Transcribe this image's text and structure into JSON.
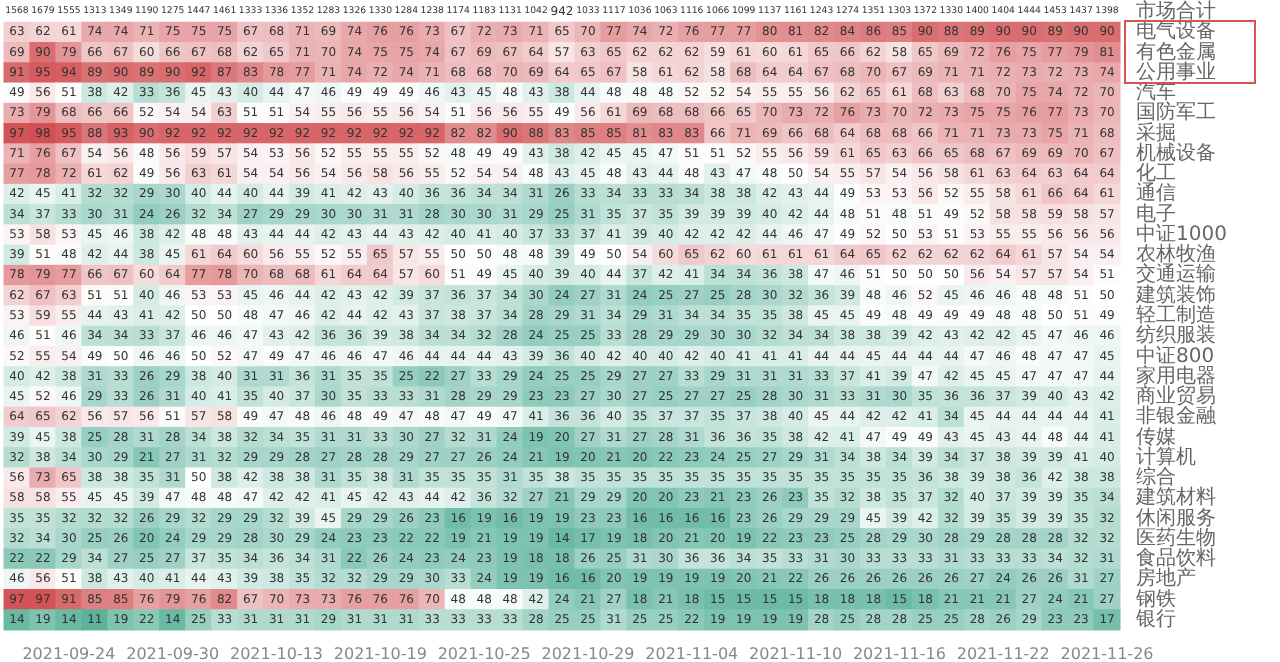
{
  "chart_data": {
    "type": "heatmap",
    "categories": [
      null,
      null,
      "2021-09-24",
      null,
      null,
      null,
      "2021-09-30",
      null,
      null,
      null,
      "2021-10-13",
      null,
      null,
      null,
      "2021-10-19",
      null,
      null,
      null,
      "2021-10-25",
      null,
      null,
      null,
      "2021-10-29",
      null,
      null,
      null,
      "2021-11-04",
      null,
      null,
      null,
      "2021-11-10",
      null,
      null,
      null,
      "2021-11-16",
      null,
      null,
      null,
      "2021-11-22",
      null,
      null,
      null,
      "2021-11-26"
    ],
    "y_categories": [
      "市场合计",
      "电气设备",
      "有色金属",
      "公用事业",
      "汽车",
      "国防军工",
      "采掘",
      "机械设备",
      "化工",
      "通信",
      "电子",
      "中证1000",
      "农林牧渔",
      "交通运输",
      "建筑装饰",
      "轻工制造",
      "纺织服装",
      "中证800",
      "家用电器",
      "商业贸易",
      "非银金融",
      "传媒",
      "计算机",
      "综合",
      "建筑材料",
      "休闲服务",
      "医药生物",
      "食品饮料",
      "房地产",
      "钢铁",
      "银行"
    ],
    "cells": [
      [
        1568,
        1679,
        1555,
        1313,
        1349,
        1190,
        1275,
        1447,
        1461,
        1333,
        1336,
        1352,
        1283,
        1326,
        1330,
        1284,
        1238,
        1174,
        1183,
        1131,
        1042,
        942,
        1033,
        1117,
        1036,
        1063,
        1116,
        1066,
        1099,
        1137,
        1161,
        1243,
        1274,
        1351,
        1303,
        1372,
        1330,
        1400,
        1404,
        1444,
        1453,
        1437,
        1398
      ],
      [
        63,
        62,
        61,
        74,
        74,
        71,
        75,
        75,
        75,
        67,
        68,
        71,
        69,
        74,
        76,
        76,
        73,
        67,
        72,
        73,
        71,
        65,
        70,
        77,
        74,
        72,
        76,
        77,
        77,
        80,
        81,
        82,
        84,
        86,
        85,
        90,
        88,
        89,
        90,
        90,
        89,
        90,
        90
      ],
      [
        69,
        90,
        79,
        66,
        67,
        60,
        66,
        67,
        68,
        62,
        65,
        71,
        70,
        74,
        75,
        75,
        74,
        67,
        69,
        67,
        64,
        57,
        63,
        65,
        62,
        62,
        62,
        59,
        61,
        60,
        61,
        65,
        66,
        62,
        58,
        65,
        69,
        72,
        76,
        75,
        77,
        79,
        81
      ],
      [
        91,
        95,
        94,
        89,
        90,
        89,
        90,
        92,
        87,
        83,
        78,
        77,
        71,
        74,
        72,
        74,
        71,
        68,
        68,
        70,
        69,
        64,
        65,
        67,
        58,
        61,
        62,
        58,
        68,
        64,
        64,
        67,
        68,
        70,
        67,
        69,
        71,
        71,
        72,
        73,
        72,
        73,
        74
      ],
      [
        49,
        56,
        51,
        38,
        42,
        33,
        36,
        45,
        43,
        40,
        44,
        47,
        46,
        49,
        49,
        49,
        46,
        43,
        45,
        48,
        43,
        38,
        44,
        48,
        48,
        48,
        52,
        52,
        54,
        55,
        55,
        56,
        62,
        65,
        61,
        68,
        63,
        68,
        70,
        75,
        74,
        72,
        70
      ],
      [
        73,
        79,
        68,
        66,
        66,
        52,
        54,
        54,
        63,
        51,
        51,
        54,
        55,
        56,
        55,
        56,
        54,
        51,
        56,
        56,
        55,
        49,
        56,
        61,
        69,
        68,
        68,
        66,
        65,
        70,
        73,
        72,
        76,
        73,
        70,
        72,
        73,
        75,
        75,
        76,
        77,
        73,
        70
      ],
      [
        97,
        98,
        95,
        88,
        93,
        90,
        92,
        92,
        92,
        92,
        92,
        92,
        92,
        92,
        92,
        92,
        92,
        82,
        82,
        90,
        88,
        83,
        85,
        85,
        81,
        83,
        83,
        66,
        71,
        69,
        66,
        68,
        64,
        68,
        68,
        66,
        71,
        71,
        73,
        73,
        75,
        71,
        68
      ],
      [
        71,
        76,
        67,
        54,
        56,
        48,
        56,
        59,
        57,
        54,
        53,
        56,
        52,
        55,
        55,
        55,
        52,
        48,
        49,
        49,
        43,
        38,
        42,
        45,
        45,
        47,
        51,
        51,
        52,
        55,
        56,
        59,
        61,
        65,
        63,
        66,
        65,
        68,
        67,
        69,
        69,
        70,
        67
      ],
      [
        77,
        78,
        72,
        61,
        62,
        49,
        56,
        63,
        61,
        54,
        54,
        56,
        54,
        56,
        58,
        56,
        55,
        52,
        54,
        54,
        48,
        43,
        45,
        48,
        43,
        44,
        48,
        43,
        47,
        48,
        50,
        54,
        55,
        57,
        54,
        56,
        58,
        61,
        63,
        64,
        63,
        64,
        64
      ],
      [
        42,
        45,
        41,
        32,
        32,
        29,
        30,
        40,
        44,
        40,
        44,
        39,
        41,
        42,
        43,
        40,
        36,
        36,
        34,
        34,
        31,
        26,
        33,
        34,
        33,
        33,
        34,
        38,
        38,
        42,
        43,
        44,
        49,
        53,
        53,
        56,
        52,
        55,
        58,
        61,
        66,
        64,
        61
      ],
      [
        34,
        37,
        33,
        30,
        31,
        24,
        26,
        32,
        34,
        27,
        29,
        29,
        30,
        30,
        31,
        31,
        28,
        30,
        30,
        31,
        29,
        25,
        31,
        35,
        37,
        35,
        39,
        39,
        39,
        40,
        42,
        44,
        48,
        51,
        48,
        51,
        49,
        52,
        58,
        58,
        59,
        58,
        57
      ],
      [
        53,
        58,
        53,
        45,
        46,
        38,
        42,
        48,
        48,
        43,
        44,
        44,
        42,
        43,
        44,
        43,
        42,
        40,
        41,
        40,
        37,
        33,
        37,
        41,
        39,
        40,
        42,
        42,
        42,
        44,
        46,
        47,
        49,
        52,
        50,
        53,
        51,
        53,
        55,
        55,
        56,
        56,
        56
      ],
      [
        39,
        51,
        48,
        42,
        44,
        38,
        45,
        61,
        64,
        60,
        56,
        55,
        52,
        55,
        65,
        57,
        55,
        50,
        50,
        48,
        48,
        39,
        49,
        50,
        54,
        60,
        65,
        62,
        60,
        61,
        61,
        61,
        64,
        65,
        62,
        62,
        62,
        62,
        64,
        61,
        57,
        54,
        54
      ],
      [
        78,
        79,
        77,
        66,
        67,
        60,
        64,
        77,
        78,
        70,
        68,
        68,
        61,
        64,
        64,
        57,
        60,
        51,
        49,
        45,
        40,
        39,
        40,
        44,
        37,
        42,
        41,
        34,
        34,
        36,
        38,
        47,
        46,
        51,
        50,
        50,
        50,
        56,
        54,
        57,
        57,
        54,
        51
      ],
      [
        62,
        67,
        63,
        51,
        51,
        40,
        46,
        53,
        53,
        45,
        46,
        44,
        42,
        43,
        42,
        39,
        37,
        36,
        37,
        34,
        30,
        24,
        27,
        31,
        24,
        25,
        27,
        25,
        28,
        30,
        32,
        36,
        39,
        48,
        46,
        52,
        45,
        46,
        46,
        48,
        48,
        51,
        50
      ],
      [
        53,
        59,
        55,
        44,
        43,
        41,
        42,
        50,
        50,
        48,
        47,
        46,
        42,
        44,
        42,
        43,
        37,
        38,
        37,
        34,
        28,
        29,
        31,
        34,
        29,
        31,
        34,
        34,
        35,
        35,
        38,
        45,
        45,
        49,
        48,
        49,
        49,
        49,
        48,
        48,
        50,
        51,
        49
      ],
      [
        46,
        51,
        46,
        34,
        34,
        33,
        37,
        46,
        46,
        47,
        43,
        42,
        36,
        36,
        39,
        38,
        34,
        34,
        32,
        28,
        24,
        25,
        25,
        33,
        28,
        29,
        29,
        30,
        30,
        32,
        34,
        34,
        38,
        38,
        39,
        42,
        43,
        42,
        42,
        45,
        47,
        46,
        46
      ],
      [
        52,
        55,
        54,
        49,
        50,
        46,
        46,
        50,
        52,
        47,
        49,
        47,
        46,
        46,
        47,
        46,
        44,
        44,
        44,
        43,
        39,
        36,
        40,
        42,
        40,
        40,
        42,
        40,
        41,
        41,
        41,
        44,
        44,
        45,
        44,
        44,
        44,
        47,
        46,
        48,
        47,
        47,
        45
      ],
      [
        40,
        42,
        38,
        31,
        33,
        26,
        29,
        38,
        40,
        31,
        31,
        36,
        31,
        35,
        35,
        25,
        22,
        27,
        33,
        29,
        24,
        25,
        25,
        29,
        27,
        27,
        33,
        29,
        31,
        31,
        31,
        33,
        37,
        41,
        39,
        47,
        42,
        45,
        45,
        47,
        47,
        47,
        44
      ],
      [
        45,
        52,
        46,
        29,
        33,
        26,
        31,
        40,
        41,
        35,
        40,
        37,
        30,
        35,
        33,
        33,
        31,
        28,
        29,
        29,
        23,
        23,
        27,
        30,
        27,
        25,
        27,
        27,
        25,
        28,
        30,
        31,
        33,
        31,
        30,
        35,
        36,
        36,
        37,
        39,
        40,
        43,
        42
      ],
      [
        64,
        65,
        62,
        56,
        57,
        56,
        51,
        57,
        58,
        49,
        47,
        48,
        46,
        48,
        49,
        47,
        48,
        47,
        49,
        47,
        41,
        36,
        36,
        40,
        35,
        37,
        37,
        35,
        37,
        38,
        40,
        45,
        44,
        42,
        42,
        41,
        34,
        45,
        44,
        44,
        44,
        44,
        41
      ],
      [
        39,
        45,
        38,
        25,
        28,
        31,
        28,
        34,
        38,
        32,
        34,
        35,
        31,
        31,
        33,
        30,
        27,
        32,
        31,
        24,
        19,
        20,
        27,
        31,
        27,
        28,
        31,
        36,
        36,
        35,
        38,
        42,
        41,
        47,
        49,
        49,
        43,
        45,
        43,
        44,
        48,
        44,
        41
      ],
      [
        32,
        38,
        34,
        30,
        29,
        21,
        27,
        31,
        32,
        29,
        29,
        28,
        27,
        28,
        28,
        29,
        27,
        27,
        26,
        24,
        21,
        19,
        20,
        21,
        20,
        22,
        23,
        24,
        25,
        27,
        29,
        31,
        34,
        38,
        34,
        39,
        34,
        37,
        38,
        39,
        39,
        41,
        40
      ],
      [
        56,
        73,
        65,
        38,
        38,
        35,
        31,
        50,
        38,
        42,
        38,
        38,
        31,
        35,
        38,
        31,
        35,
        35,
        35,
        31,
        35,
        38,
        35,
        35,
        35,
        35,
        35,
        35,
        35,
        35,
        35,
        35,
        35,
        35,
        35,
        36,
        38,
        39,
        38,
        36,
        42,
        38,
        38
      ],
      [
        58,
        58,
        55,
        45,
        45,
        39,
        47,
        48,
        48,
        47,
        42,
        42,
        41,
        45,
        42,
        43,
        44,
        42,
        36,
        32,
        27,
        21,
        29,
        29,
        20,
        20,
        23,
        21,
        23,
        26,
        23,
        35,
        32,
        38,
        35,
        37,
        32,
        40,
        37,
        39,
        39,
        35,
        34
      ],
      [
        35,
        35,
        32,
        32,
        32,
        26,
        29,
        32,
        29,
        29,
        32,
        39,
        45,
        29,
        29,
        26,
        23,
        16,
        19,
        16,
        19,
        19,
        23,
        23,
        16,
        16,
        16,
        16,
        23,
        26,
        29,
        29,
        29,
        45,
        39,
        42,
        32,
        39,
        35,
        39,
        39,
        35,
        32
      ],
      [
        32,
        34,
        30,
        25,
        26,
        20,
        24,
        29,
        29,
        28,
        30,
        29,
        24,
        23,
        23,
        22,
        22,
        19,
        21,
        19,
        19,
        14,
        17,
        19,
        18,
        20,
        21,
        20,
        19,
        22,
        23,
        23,
        25,
        28,
        29,
        30,
        28,
        29,
        28,
        28,
        28,
        32,
        32
      ],
      [
        22,
        22,
        29,
        34,
        27,
        25,
        27,
        37,
        35,
        34,
        36,
        34,
        31,
        22,
        26,
        24,
        23,
        24,
        23,
        19,
        18,
        18,
        26,
        25,
        31,
        30,
        36,
        36,
        34,
        35,
        33,
        31,
        30,
        33,
        33,
        33,
        31,
        33,
        33,
        33,
        34,
        32,
        31
      ],
      [
        46,
        56,
        51,
        38,
        43,
        40,
        41,
        44,
        43,
        39,
        38,
        35,
        32,
        32,
        29,
        29,
        30,
        33,
        24,
        19,
        19,
        16,
        16,
        20,
        19,
        19,
        19,
        19,
        20,
        21,
        22,
        26,
        26,
        26,
        26,
        26,
        26,
        27,
        24,
        26,
        26,
        31,
        27
      ],
      [
        97,
        97,
        91,
        85,
        85,
        76,
        79,
        76,
        82,
        67,
        70,
        73,
        73,
        76,
        76,
        76,
        70,
        48,
        48,
        48,
        42,
        24,
        21,
        27,
        18,
        21,
        18,
        15,
        15,
        15,
        15,
        18,
        18,
        18,
        15,
        18,
        21,
        21,
        21,
        27,
        24,
        21,
        27
      ],
      [
        14,
        19,
        14,
        11,
        19,
        22,
        14,
        25,
        33,
        31,
        31,
        31,
        29,
        31,
        31,
        31,
        33,
        33,
        33,
        33,
        28,
        25,
        25,
        31,
        25,
        25,
        22,
        19,
        19,
        19,
        19,
        28,
        25,
        28,
        28,
        25,
        25,
        28,
        26,
        29,
        23,
        23,
        17
      ]
    ],
    "data_labels": true
  }
}
